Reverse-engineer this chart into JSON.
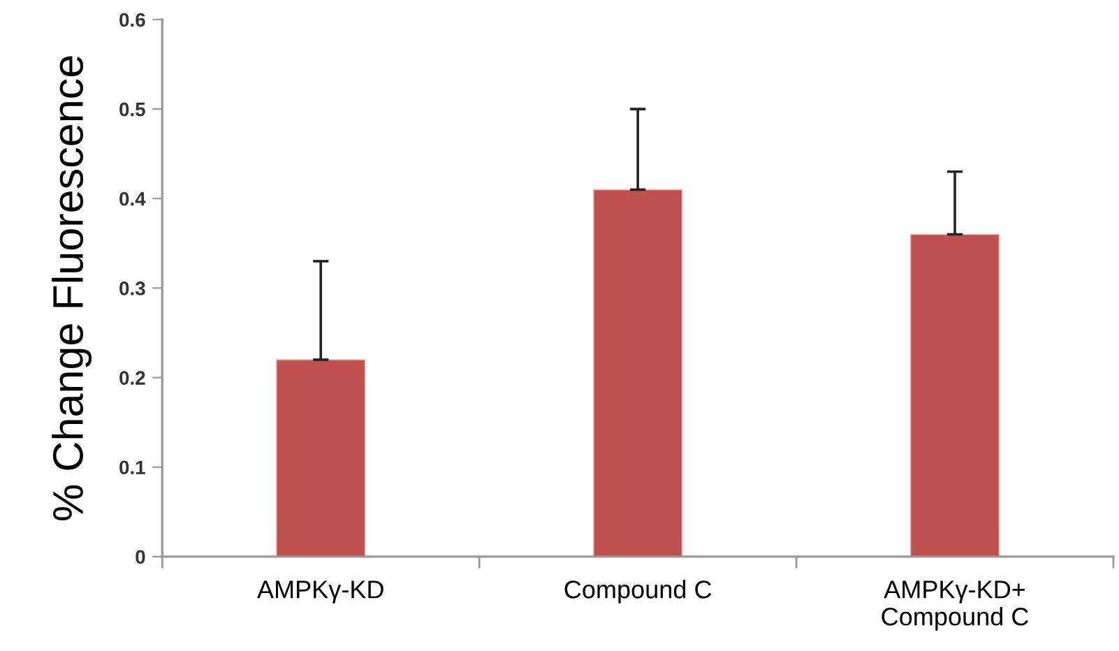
{
  "chart_data": {
    "type": "bar",
    "ylabel": "% Change Fluorescence",
    "categories": [
      "AMPKγ-KD",
      "Compound C",
      "AMPKγ-KD+\nCompound C"
    ],
    "values": [
      0.22,
      0.41,
      0.36
    ],
    "color": "#c0504d",
    "errors": [
      [
        0.22,
        0.33
      ],
      [
        0.41,
        0.5
      ],
      [
        0.36,
        0.43
      ]
    ],
    "ylim": [
      0,
      0.6
    ],
    "yticks": [
      0,
      0.1,
      0.2,
      0.3,
      0.4,
      0.5,
      0.6
    ],
    "grid": false
  }
}
